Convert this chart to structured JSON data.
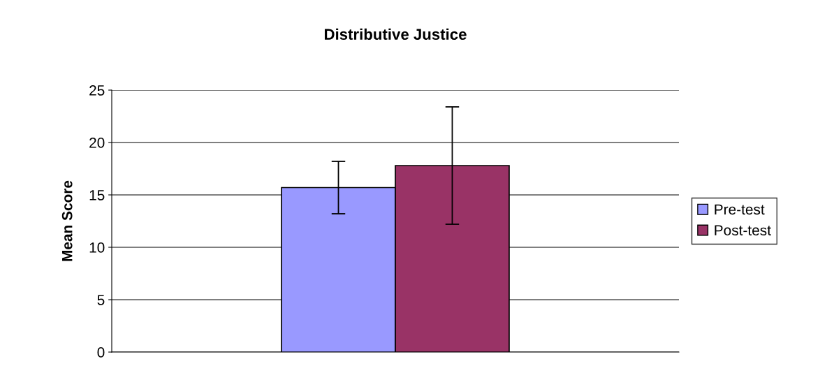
{
  "chart_data": {
    "type": "bar",
    "title": "Distributive Justice",
    "ylabel": "Mean Score",
    "categories": [
      null
    ],
    "series": [
      {
        "name": "Pre-test",
        "color": "#9999ff",
        "values": [
          15.7
        ],
        "errors": [
          2.5
        ]
      },
      {
        "name": "Post-test",
        "color": "#993366",
        "values": [
          17.8
        ],
        "errors": [
          5.6
        ]
      }
    ],
    "ylim": [
      0,
      25
    ],
    "yticks": [
      0,
      5,
      10,
      15,
      20,
      25
    ],
    "grid": "y",
    "legend": "right"
  }
}
